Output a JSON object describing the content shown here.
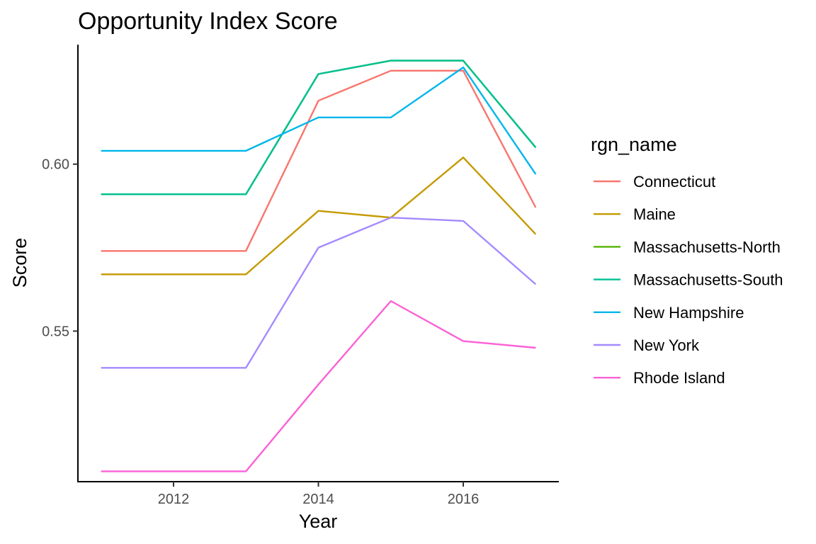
{
  "chart_data": {
    "type": "line",
    "title": "Opportunity Index Score",
    "xlabel": "Year",
    "ylabel": "Score",
    "xlim": [
      2010.68,
      2017.32
    ],
    "ylim": [
      0.5049,
      0.6358
    ],
    "x_ticks": [
      2012,
      2014,
      2016
    ],
    "y_ticks": [
      0.55,
      0.6
    ],
    "y_tick_labels": [
      "0.55",
      "0.60"
    ],
    "grid": false,
    "legend_title": "rgn_name",
    "legend_position": "right",
    "x": [
      2011,
      2012,
      2013,
      2014,
      2015,
      2016,
      2017
    ],
    "series": [
      {
        "name": "Connecticut",
        "color": "#F8766D",
        "values": [
          0.574,
          0.574,
          0.574,
          0.619,
          0.628,
          0.628,
          0.587
        ]
      },
      {
        "name": "Maine",
        "color": "#C49A00",
        "values": [
          0.567,
          0.567,
          0.567,
          0.586,
          0.584,
          0.602,
          0.579
        ]
      },
      {
        "name": "Massachusetts-North",
        "color": "#53B400",
        "values": [
          0.591,
          0.591,
          0.591,
          0.627,
          0.631,
          0.631,
          0.605
        ]
      },
      {
        "name": "Massachusetts-South",
        "color": "#00C094",
        "values": [
          0.591,
          0.591,
          0.591,
          0.627,
          0.631,
          0.631,
          0.605
        ]
      },
      {
        "name": "New Hampshire",
        "color": "#00B6EB",
        "values": [
          0.604,
          0.604,
          0.604,
          0.614,
          0.614,
          0.629,
          0.597
        ]
      },
      {
        "name": "New York",
        "color": "#A58AFF",
        "values": [
          0.539,
          0.539,
          0.539,
          0.575,
          0.584,
          0.583,
          0.564
        ]
      },
      {
        "name": "Rhode Island",
        "color": "#FB61D7",
        "values": [
          0.508,
          0.508,
          0.508,
          0.534,
          0.559,
          0.547,
          0.545
        ]
      }
    ]
  }
}
